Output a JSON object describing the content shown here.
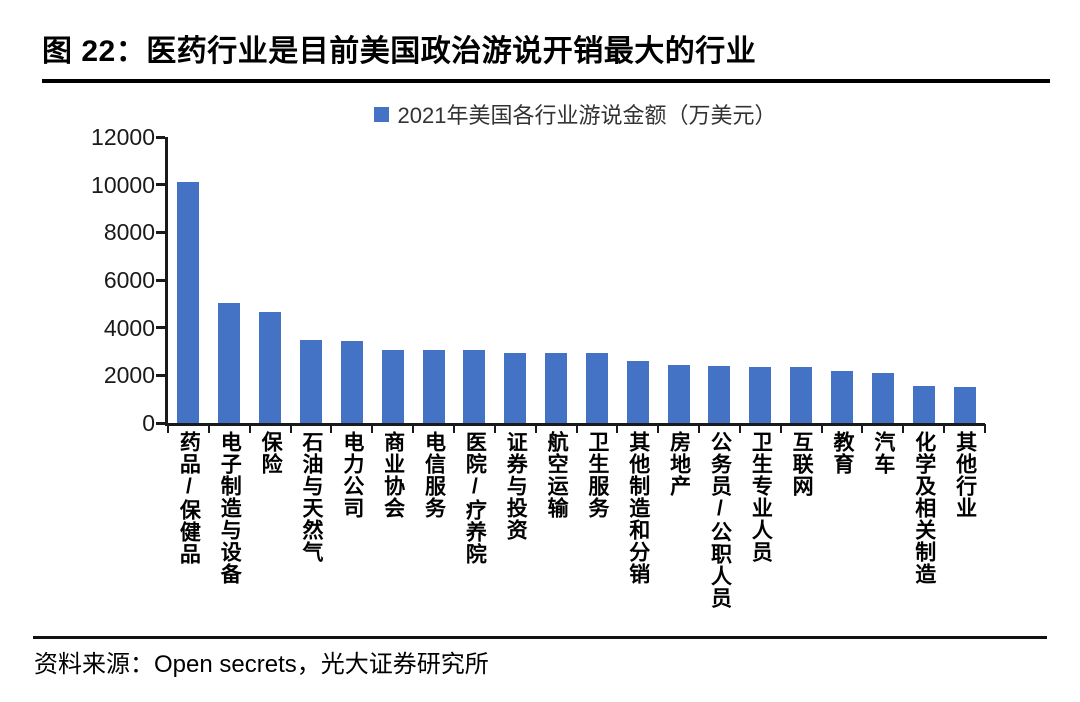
{
  "page": {
    "title": "图 22：医药行业是目前美国政治游说开销最大的行业",
    "source": "资料来源：Open secrets，光大证券研究所"
  },
  "chart_data": {
    "type": "bar",
    "title": "图 22：医药行业是目前美国政治游说开销最大的行业",
    "legend": [
      "2021年美国各行业游说金额（万美元）"
    ],
    "legend_position": "top-center",
    "categories": [
      "药品/保健品",
      "电子制造与设备",
      "保险",
      "石油与天然气",
      "电力公司",
      "商业协会",
      "电信服务",
      "医院/疗养院",
      "证券与投资",
      "航空运输",
      "卫生服务",
      "其他制造和分销",
      "房地产",
      "公务员/公职人员",
      "卫生专业人员",
      "互联网",
      "教育",
      "汽车",
      "化学及相关制造",
      "其他行业"
    ],
    "values": [
      10100,
      5050,
      4650,
      3500,
      3450,
      3070,
      3070,
      3060,
      2950,
      2950,
      2940,
      2600,
      2450,
      2400,
      2350,
      2330,
      2200,
      2100,
      1550,
      1500
    ],
    "xlabel": "",
    "ylabel": "",
    "ylim": [
      0,
      12000
    ],
    "ytick_step": 2000,
    "grid": false,
    "bar_color": "#4472C4",
    "axis_color": "#1a1a1a"
  }
}
